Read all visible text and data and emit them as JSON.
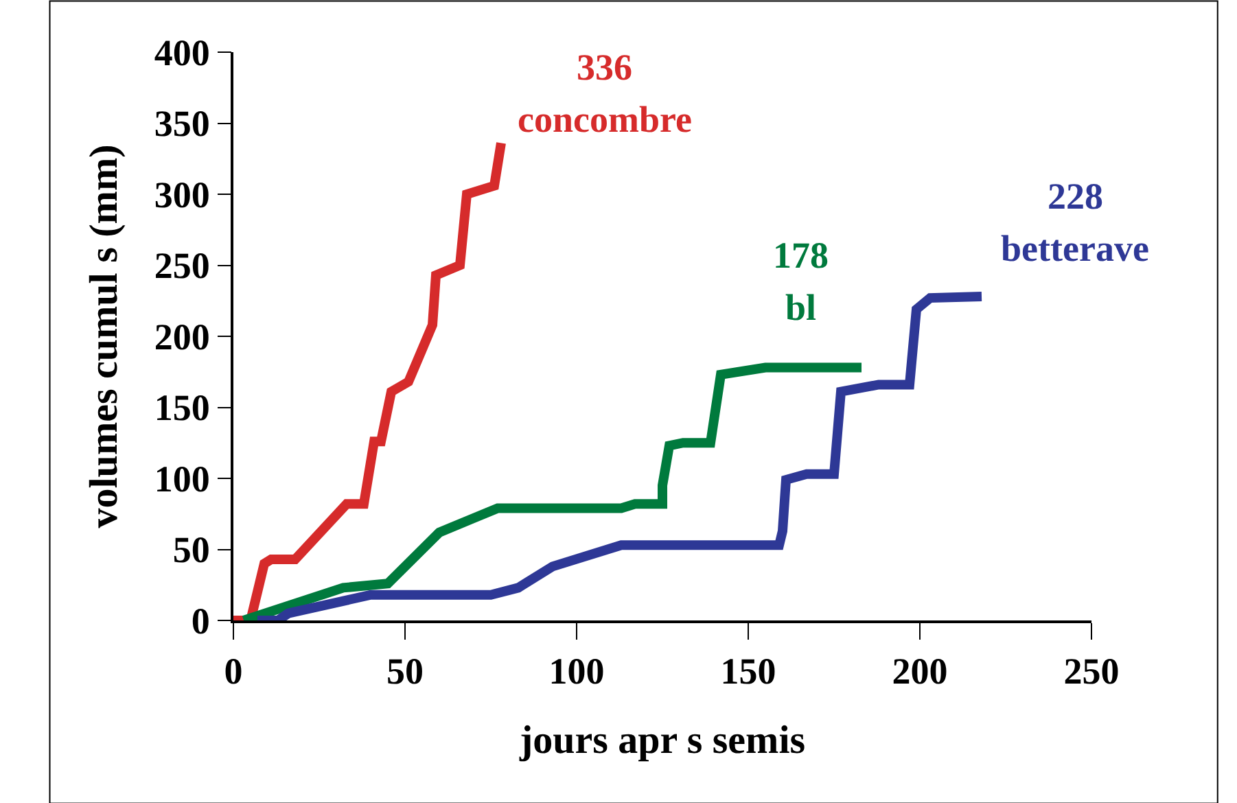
{
  "chart_data": {
    "type": "line",
    "xlabel": "jours apr s semis",
    "ylabel": "volumes cumul s (mm)",
    "xlim": [
      0,
      250
    ],
    "xticks": [
      0,
      50,
      100,
      150,
      200,
      250
    ],
    "ylim": [
      0,
      400
    ],
    "yticks": [
      0,
      50,
      100,
      150,
      200,
      250,
      300,
      350,
      400
    ],
    "legend": false,
    "marker": "none",
    "line_style": "solid",
    "series": [
      {
        "name": "concombre",
        "color": "#d62b2b",
        "x": [
          0,
          5,
          9,
          11,
          18,
          33,
          38,
          41,
          43,
          46,
          51,
          58,
          59,
          66,
          68,
          76,
          78
        ],
        "values": [
          0,
          0,
          40,
          43,
          43,
          82,
          82,
          126,
          126,
          161,
          168,
          208,
          243,
          250,
          300,
          306,
          336
        ]
      },
      {
        "name": "bl",
        "color": "#007a3d",
        "x": [
          3,
          32,
          45,
          60,
          77,
          113,
          117,
          125,
          125,
          127,
          131,
          139,
          142,
          155,
          183
        ],
        "values": [
          0,
          23,
          26,
          62,
          79,
          79,
          82,
          82,
          95,
          123,
          125,
          125,
          173,
          178,
          178
        ]
      },
      {
        "name": "betterave",
        "color": "#2e3896",
        "x": [
          7,
          13,
          16,
          40,
          75,
          83,
          93,
          113,
          159,
          160,
          161,
          167,
          175,
          177,
          188,
          197,
          199,
          203,
          218
        ],
        "values": [
          0,
          0,
          5,
          18,
          18,
          23,
          38,
          53,
          53,
          63,
          99,
          103,
          103,
          161,
          166,
          166,
          219,
          227,
          228
        ]
      }
    ],
    "annotations": [
      {
        "text": "336",
        "x": 78,
        "y": 336
      },
      {
        "text": "178",
        "x": 183,
        "y": 178
      },
      {
        "text": "228",
        "x": 218,
        "y": 228
      }
    ]
  }
}
